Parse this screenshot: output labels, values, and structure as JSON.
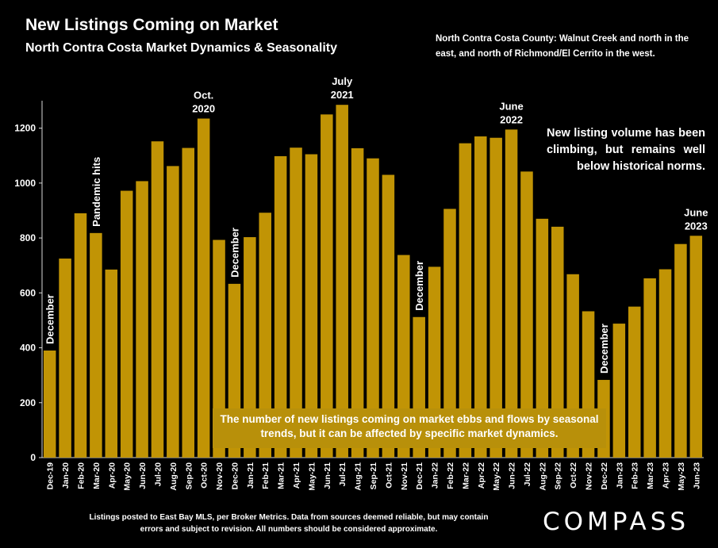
{
  "header": {
    "title": "New Listings Coming on Market",
    "subtitle": "North Contra Costa Market Dynamics & Seasonality",
    "region_note": "North Contra Costa County: Walnut Creek and north in the east, and north of Richmond/El Cerrito in the west."
  },
  "notes": {
    "trend": "New listing volume has been climbing, but remains well below historical norms.",
    "box": "The number of new listings coming on market ebbs and flows by seasonal trends, but it can be affected by specific market dynamics."
  },
  "footer": {
    "source": "Listings posted to East Bay MLS, per Broker Metrics.  Data from sources deemed reliable, but may contain errors and subject to revision. All numbers should be considered approximate.",
    "logo": "COMPASS"
  },
  "chart_data": {
    "type": "bar",
    "title": "New Listings Coming on Market",
    "subtitle": "North Contra Costa Market Dynamics & Seasonality",
    "categories": [
      "Dec-19",
      "Jan-20",
      "Feb-20",
      "Mar-20",
      "Apr-20",
      "May-20",
      "Jun-20",
      "Jul-20",
      "Aug-20",
      "Sep-20",
      "Oct-20",
      "Nov-20",
      "Dec-20",
      "Jan-21",
      "Feb-21",
      "Mar-21",
      "Apr-21",
      "May-21",
      "Jun-21",
      "Jul-21",
      "Aug-21",
      "Sep-21",
      "Oct-21",
      "Nov-21",
      "Dec-21",
      "Jan-22",
      "Feb-22",
      "Mar-22",
      "Apr-22",
      "May-22",
      "Jun-22",
      "Jul-22",
      "Aug-22",
      "Sep-22",
      "Oct-22",
      "Nov-22",
      "Dec-22",
      "Jan-23",
      "Feb-23",
      "Mar-23",
      "Apr-23",
      "May-23",
      "Jun-23"
    ],
    "values": [
      390,
      725,
      890,
      818,
      685,
      972,
      1007,
      1152,
      1062,
      1128,
      1235,
      793,
      633,
      803,
      892,
      1098,
      1129,
      1105,
      1250,
      1285,
      1127,
      1090,
      1030,
      738,
      512,
      695,
      906,
      1145,
      1170,
      1165,
      1195,
      1042,
      870,
      841,
      668,
      533,
      283,
      488,
      550,
      653,
      686,
      778,
      808
    ],
    "ylim": [
      0,
      1300
    ],
    "yticks": [
      0,
      200,
      400,
      600,
      800,
      1000,
      1200
    ],
    "color": "#c19405",
    "grid": false,
    "legend": false,
    "annotations": [
      {
        "index": 0,
        "text": "December",
        "orientation": "vertical"
      },
      {
        "index": 3,
        "text": "Pandemic hits",
        "orientation": "vertical"
      },
      {
        "index": 10,
        "text": "Oct.\n2020",
        "orientation": "horizontal"
      },
      {
        "index": 12,
        "text": "December",
        "orientation": "vertical"
      },
      {
        "index": 19,
        "text": "July\n2021",
        "orientation": "horizontal"
      },
      {
        "index": 24,
        "text": "December",
        "orientation": "vertical"
      },
      {
        "index": 30,
        "text": "June\n2022",
        "orientation": "horizontal"
      },
      {
        "index": 36,
        "text": "December",
        "orientation": "vertical"
      },
      {
        "index": 42,
        "text": "June\n2023",
        "orientation": "horizontal"
      }
    ]
  }
}
